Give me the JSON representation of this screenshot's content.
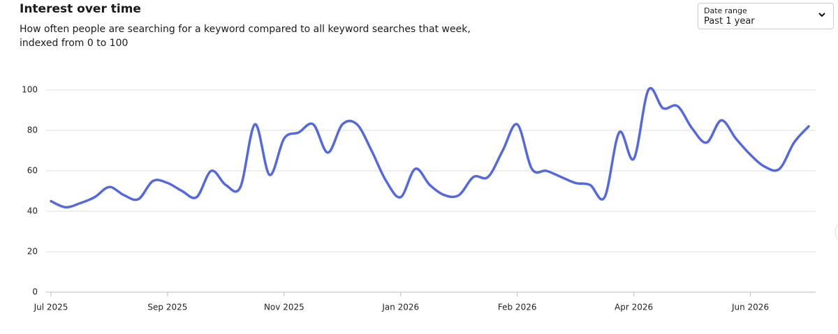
{
  "chart_data": {
    "type": "line",
    "title": "Interest over time",
    "subtitle": "How often people are searching for a keyword compared to all keyword searches that week, indexed from 0 to 100",
    "categories": [
      "Jul 2025",
      null,
      null,
      null,
      null,
      null,
      null,
      null,
      "Sep 2025",
      null,
      null,
      null,
      null,
      null,
      null,
      null,
      "Nov 2025",
      null,
      null,
      null,
      null,
      null,
      null,
      null,
      "Jan 2026",
      null,
      null,
      null,
      null,
      null,
      null,
      null,
      "Feb 2026",
      null,
      null,
      null,
      null,
      null,
      null,
      null,
      "Apr 2026",
      null,
      null,
      null,
      null,
      null,
      null,
      null,
      "Jun 2026",
      null,
      null,
      null,
      null
    ],
    "values": [
      45,
      42,
      44,
      47,
      52,
      48,
      46,
      55,
      54,
      50,
      47,
      60,
      53,
      52,
      83,
      58,
      76,
      79,
      83,
      69,
      83,
      83,
      70,
      55,
      47,
      61,
      53,
      48,
      48,
      57,
      57,
      70,
      83,
      61,
      60,
      57,
      54,
      53,
      47,
      79,
      66,
      100,
      91,
      92,
      81,
      74,
      85,
      76,
      68,
      62,
      61,
      74,
      82
    ],
    "color": "#5468e0",
    "ylim": [
      0,
      100
    ],
    "yticks": [
      0,
      20,
      40,
      60,
      80,
      100
    ],
    "grid": true
  },
  "controls": {
    "date_range_label": "Date range",
    "date_range_value": "Past 1 year"
  }
}
